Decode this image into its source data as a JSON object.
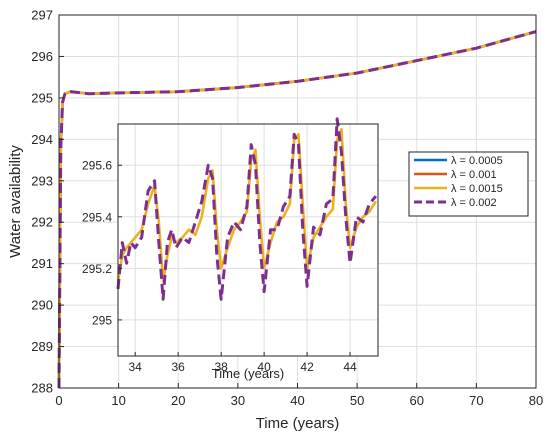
{
  "chart_data": [
    {
      "type": "line",
      "id": "main",
      "xlabel": "Time (years)",
      "ylabel": "Water availability",
      "xlim": [
        0,
        80
      ],
      "ylim": [
        288,
        297
      ],
      "xticks": [
        0,
        10,
        20,
        30,
        40,
        50,
        60,
        70,
        80
      ],
      "yticks": [
        288,
        289,
        290,
        291,
        292,
        293,
        294,
        295,
        296,
        297
      ],
      "grid": true,
      "legend": {
        "placement": "inside-right",
        "entries": [
          "λ = 0.0005",
          "λ = 0.001",
          "λ = 0.0015",
          "λ = 0.002"
        ]
      },
      "series": [
        {
          "name": "λ = 0.0005",
          "color": "#0072BD",
          "dashed": false,
          "x": [
            0,
            0.3,
            0.6,
            1,
            2,
            5,
            10,
            20,
            30,
            40,
            50,
            60,
            70,
            80
          ],
          "y": [
            288,
            293.8,
            294.9,
            295.1,
            295.15,
            295.1,
            295.12,
            295.15,
            295.25,
            295.4,
            295.6,
            295.9,
            296.2,
            296.6
          ]
        },
        {
          "name": "λ = 0.001",
          "color": "#D95319",
          "dashed": false,
          "x": [
            0,
            0.3,
            0.6,
            1,
            2,
            5,
            10,
            20,
            30,
            40,
            50,
            60,
            70,
            80
          ],
          "y": [
            288,
            293.8,
            294.9,
            295.1,
            295.15,
            295.1,
            295.12,
            295.15,
            295.25,
            295.4,
            295.6,
            295.9,
            296.2,
            296.6
          ]
        },
        {
          "name": "λ = 0.0015",
          "color": "#EDB120",
          "dashed": false,
          "x": [
            0,
            0.3,
            0.6,
            1,
            2,
            5,
            10,
            20,
            30,
            40,
            50,
            60,
            70,
            80
          ],
          "y": [
            288,
            293.8,
            294.9,
            295.1,
            295.15,
            295.1,
            295.12,
            295.15,
            295.25,
            295.4,
            295.6,
            295.9,
            296.2,
            296.6
          ]
        },
        {
          "name": "λ = 0.002",
          "color": "#7E2F8E",
          "dashed": true,
          "x": [
            0,
            0.3,
            0.6,
            1,
            2,
            5,
            10,
            20,
            30,
            40,
            50,
            60,
            70,
            80
          ],
          "y": [
            288,
            293.8,
            294.9,
            295.1,
            295.15,
            295.1,
            295.12,
            295.15,
            295.25,
            295.4,
            295.6,
            295.9,
            296.2,
            296.6
          ]
        }
      ]
    },
    {
      "type": "line",
      "id": "inset",
      "xlabel": "Time (years)",
      "ylabel": "",
      "xlim": [
        33.2,
        45.3
      ],
      "ylim": [
        294.86,
        295.76
      ],
      "xticks": [
        34,
        36,
        38,
        40,
        42,
        44
      ],
      "yticks": [
        295,
        295.2,
        295.4,
        295.6
      ],
      "grid": true,
      "series": [
        {
          "name": "λ = 0.0015",
          "color": "#EDB120",
          "dashed": false,
          "x": [
            33.2,
            33.4,
            33.6,
            33.8,
            34.0,
            34.3,
            34.6,
            34.9,
            35.1,
            35.3,
            35.5,
            35.7,
            35.9,
            36.2,
            36.5,
            36.8,
            37.1,
            37.4,
            37.6,
            37.8,
            38.0,
            38.3,
            38.6,
            38.9,
            39.2,
            39.4,
            39.6,
            39.8,
            40.0,
            40.3,
            40.6,
            40.9,
            41.2,
            41.4,
            41.6,
            41.8,
            42.0,
            42.3,
            42.6,
            42.9,
            43.2,
            43.4,
            43.6,
            43.8,
            44.0,
            44.3,
            44.6,
            44.9,
            45.2
          ],
          "y": [
            295.15,
            295.25,
            295.28,
            295.3,
            295.32,
            295.35,
            295.45,
            295.52,
            295.38,
            295.15,
            295.25,
            295.32,
            295.3,
            295.32,
            295.35,
            295.33,
            295.4,
            295.55,
            295.58,
            295.35,
            295.2,
            295.28,
            295.35,
            295.38,
            295.42,
            295.62,
            295.66,
            295.4,
            295.2,
            295.3,
            295.38,
            295.4,
            295.45,
            295.7,
            295.72,
            295.45,
            295.2,
            295.32,
            295.36,
            295.4,
            295.43,
            295.7,
            295.74,
            295.45,
            295.28,
            295.36,
            295.4,
            295.42,
            295.46
          ]
        },
        {
          "name": "λ = 0.002",
          "color": "#7E2F8E",
          "dashed": true,
          "x": [
            33.2,
            33.4,
            33.6,
            33.8,
            34.0,
            34.3,
            34.6,
            34.9,
            35.1,
            35.3,
            35.5,
            35.7,
            35.9,
            36.2,
            36.5,
            36.8,
            37.1,
            37.4,
            37.6,
            37.8,
            38.0,
            38.3,
            38.6,
            38.9,
            39.2,
            39.4,
            39.6,
            39.8,
            40.0,
            40.3,
            40.6,
            40.9,
            41.2,
            41.4,
            41.6,
            41.8,
            42.0,
            42.3,
            42.6,
            42.9,
            43.2,
            43.4,
            43.6,
            43.8,
            44.0,
            44.3,
            44.6,
            44.9,
            45.2
          ],
          "y": [
            295.12,
            295.3,
            295.22,
            295.3,
            295.28,
            295.32,
            295.5,
            295.54,
            295.3,
            295.08,
            295.3,
            295.35,
            295.28,
            295.32,
            295.3,
            295.38,
            295.46,
            295.6,
            295.55,
            295.25,
            295.08,
            295.32,
            295.38,
            295.35,
            295.44,
            295.68,
            295.6,
            295.3,
            295.11,
            295.35,
            295.35,
            295.44,
            295.48,
            295.72,
            295.68,
            295.35,
            295.13,
            295.36,
            295.33,
            295.45,
            295.47,
            295.78,
            295.65,
            295.4,
            295.22,
            295.4,
            295.38,
            295.45,
            295.48
          ]
        }
      ]
    }
  ]
}
